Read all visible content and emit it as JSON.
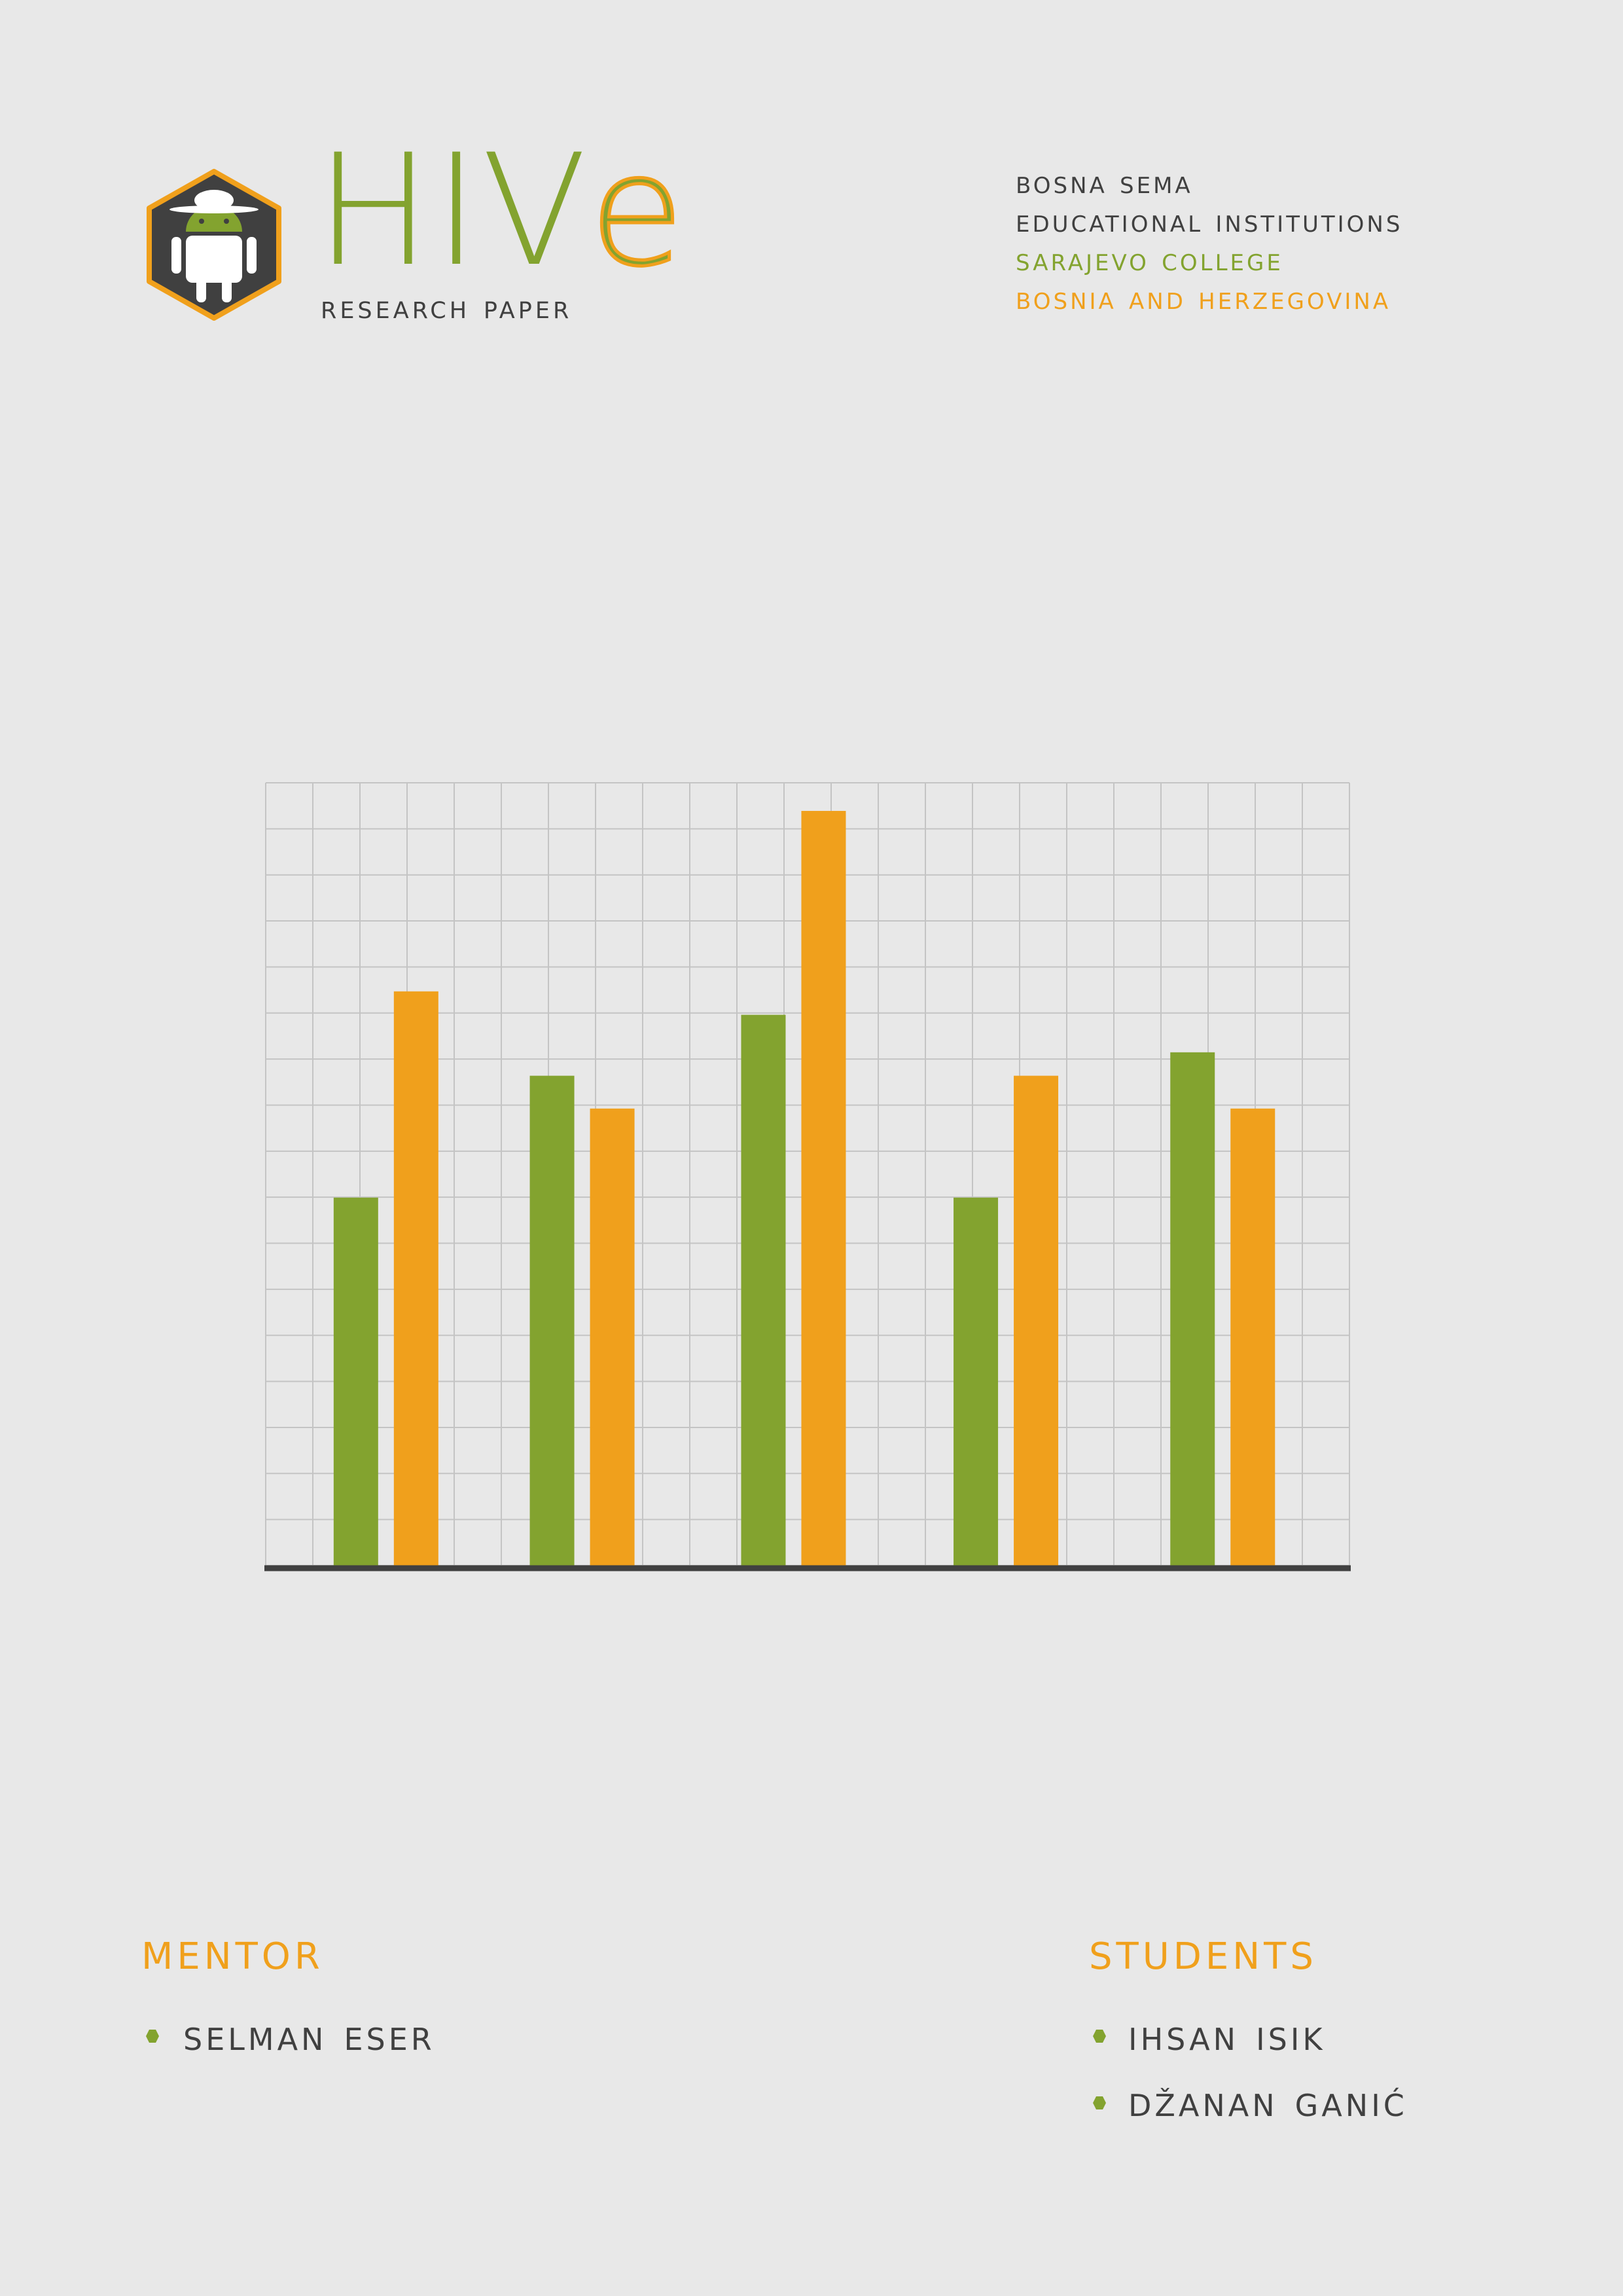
{
  "header": {
    "brand_title_hi": "HIV",
    "brand_title_e": "e",
    "brand_subtitle": "RESEARCH PAPER",
    "logo_icon": "android-robot-hexagon-icon"
  },
  "institution": {
    "line1": "BOSNA SEMA",
    "line2": "EDUCATIONAL INSTITUTIONS",
    "line3": "SARAJEVO COLLEGE",
    "line4": "BOSNIA AND HERZEGOVINA"
  },
  "colors": {
    "green": "#83a32f",
    "orange": "#f0a01c",
    "dark": "#404040",
    "background": "#e8e8e8",
    "grid": "#c4c4c4"
  },
  "chart_data": {
    "type": "bar",
    "categories": [
      "",
      "",
      "",
      "",
      ""
    ],
    "series": [
      {
        "color": "#83a32f",
        "values": [
          7.85,
          10.45,
          11.75,
          7.85,
          10.95
        ]
      },
      {
        "color": "#f0a01c",
        "values": [
          12.25,
          9.75,
          16.1,
          10.45,
          9.75
        ]
      }
    ],
    "ylim": [
      0,
      16.7
    ],
    "grid": true,
    "legend": "none",
    "title": "",
    "xlabel": "",
    "ylabel": ""
  },
  "mentor": {
    "title": "MENTOR",
    "names": [
      "SELMAN ESER"
    ]
  },
  "students": {
    "title": "STUDENTS",
    "names": [
      "IHSAN ISIK",
      "DŽANAN GANIĆ"
    ]
  }
}
